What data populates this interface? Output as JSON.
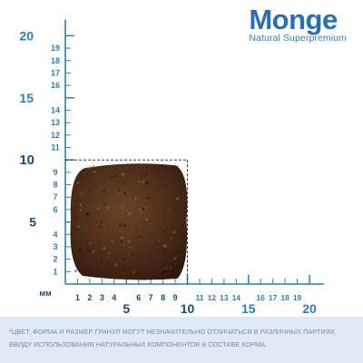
{
  "brand": {
    "logo_text": "Monge",
    "tagline": "Natural Superpremium"
  },
  "ruler": {
    "unit_label": "мм",
    "y_labels": [
      "20",
      "19",
      "18",
      "17",
      "16",
      "15",
      "14",
      "13",
      "12",
      "11",
      "10",
      "9",
      "8",
      "7",
      "6",
      "5",
      "4",
      "3",
      "2",
      "1"
    ],
    "x_labels": [
      "1",
      "2",
      "3",
      "4",
      "5",
      "6",
      "7",
      "8",
      "9",
      "10",
      "11",
      "12",
      "13",
      "14",
      "15",
      "16",
      "17",
      "18",
      "19",
      "20"
    ],
    "major_values": [
      5,
      10,
      15,
      20
    ]
  },
  "kibble": {
    "width_mm": 10,
    "height_mm": 10,
    "color": "#4a2a1a"
  },
  "colors": {
    "ruler_blue": "#2b7fc0",
    "label_dark": "#1d4a7a",
    "footnote_bg": "#dfe8f3"
  },
  "footnote": {
    "line1": "*ЦВЕТ, ФОРМА И РАЗМЕР ГРАНУЛ МОГУТ НЕЗНАЧИТЕЛЬНО ОТЛИЧАТЬСЯ В РАЗЛИЧНЫХ ПАРТИЯХ,",
    "line2": "ВВИДУ ИСПОЛЬЗОВАНИЯ НАТУРАЛЬНЫХ КОМПОНЕНТОВ В СОСТАВЕ КОРМА."
  }
}
